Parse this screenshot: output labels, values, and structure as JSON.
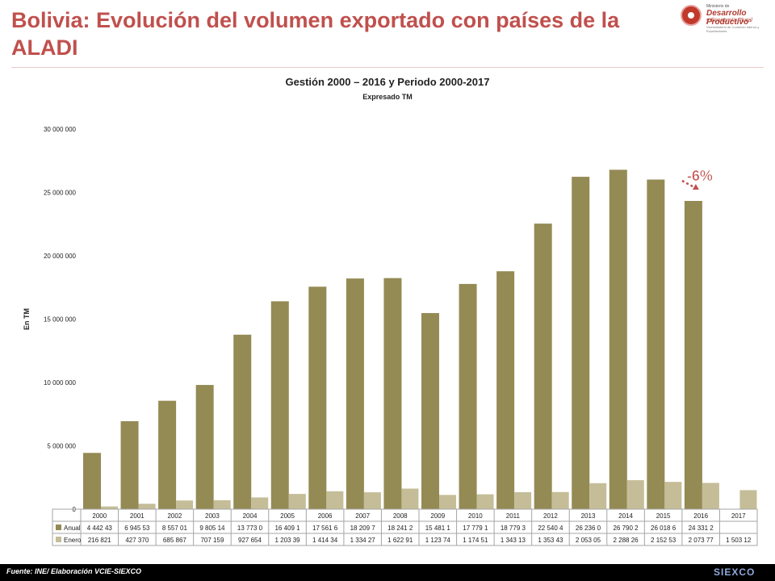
{
  "page": {
    "title": "Bolivia: Evolución del volumen exportado con países de la ALADI",
    "source": "Fuente: INE/ Elaboración VCIE-SIEXCO"
  },
  "logo": {
    "line1": "Ministerio de",
    "line2": "Desarrollo Productivo",
    "line3": "y Economía Plural",
    "line4": "Viceministerio de Comercio Interno y Exportaciones",
    "footer_brand": "SIEXCO"
  },
  "chart_data": {
    "type": "bar",
    "title": "Gestión 2000 – 2016 y Periodo 2000-2017",
    "subtitle": "Expresado TM",
    "ylabel": "En TM",
    "xlabel": "",
    "ylim": [
      0,
      30000000
    ],
    "yticks": [
      0,
      5000000,
      10000000,
      15000000,
      20000000,
      25000000,
      30000000
    ],
    "ytick_labels": [
      "0",
      "5 000 000",
      "10 000 000",
      "15 000 000",
      "20 000 000",
      "25 000 000",
      "30 000 000"
    ],
    "categories": [
      "2000",
      "2001",
      "2002",
      "2003",
      "2004",
      "2005",
      "2006",
      "2007",
      "2008",
      "2009",
      "2010",
      "2011",
      "2012",
      "2013",
      "2014",
      "2015",
      "2016",
      "2017"
    ],
    "grid": false,
    "legend": "table-below",
    "series": [
      {
        "name": "Anual",
        "color": "#948a54",
        "values": [
          4442430,
          6945530,
          8557010,
          9805140,
          13773000,
          16409100,
          17561600,
          18209700,
          18241200,
          15481100,
          17779100,
          18779300,
          22540400,
          26236000,
          26790200,
          26018600,
          24331200,
          null
        ],
        "labels": [
          "4 442 43",
          "6 945 53",
          "8 557 01",
          "9 805 14",
          "13 773 0",
          "16 409 1",
          "17 561 6",
          "18 209 7",
          "18 241 2",
          "15 481 1",
          "17 779 1",
          "18 779 3",
          "22 540 4",
          "26 236 0",
          "26 790 2",
          "26 018 6",
          "24 331 2",
          ""
        ]
      },
      {
        "name": "Enero",
        "color": "#c4bd97",
        "values": [
          216821,
          427370,
          685867,
          707159,
          927654,
          1203390,
          1414340,
          1334270,
          1622910,
          1123740,
          1174510,
          1343130,
          1353430,
          2053050,
          2288260,
          2152530,
          2073770,
          1503120
        ],
        "labels": [
          "216 821",
          "427 370",
          "685 867",
          "707 159",
          "927 654",
          "1 203 39",
          "1 414 34",
          "1 334 27",
          "1 622 91",
          "1 123 74",
          "1 174 51",
          "1 343 13",
          "1 353 43",
          "2 053 05",
          "2 288 26",
          "2 152 53",
          "2 073 77",
          "1 503 12"
        ]
      }
    ],
    "annotations": [
      {
        "text": "-6%",
        "category": "2016",
        "color": "#c0504d"
      }
    ]
  }
}
